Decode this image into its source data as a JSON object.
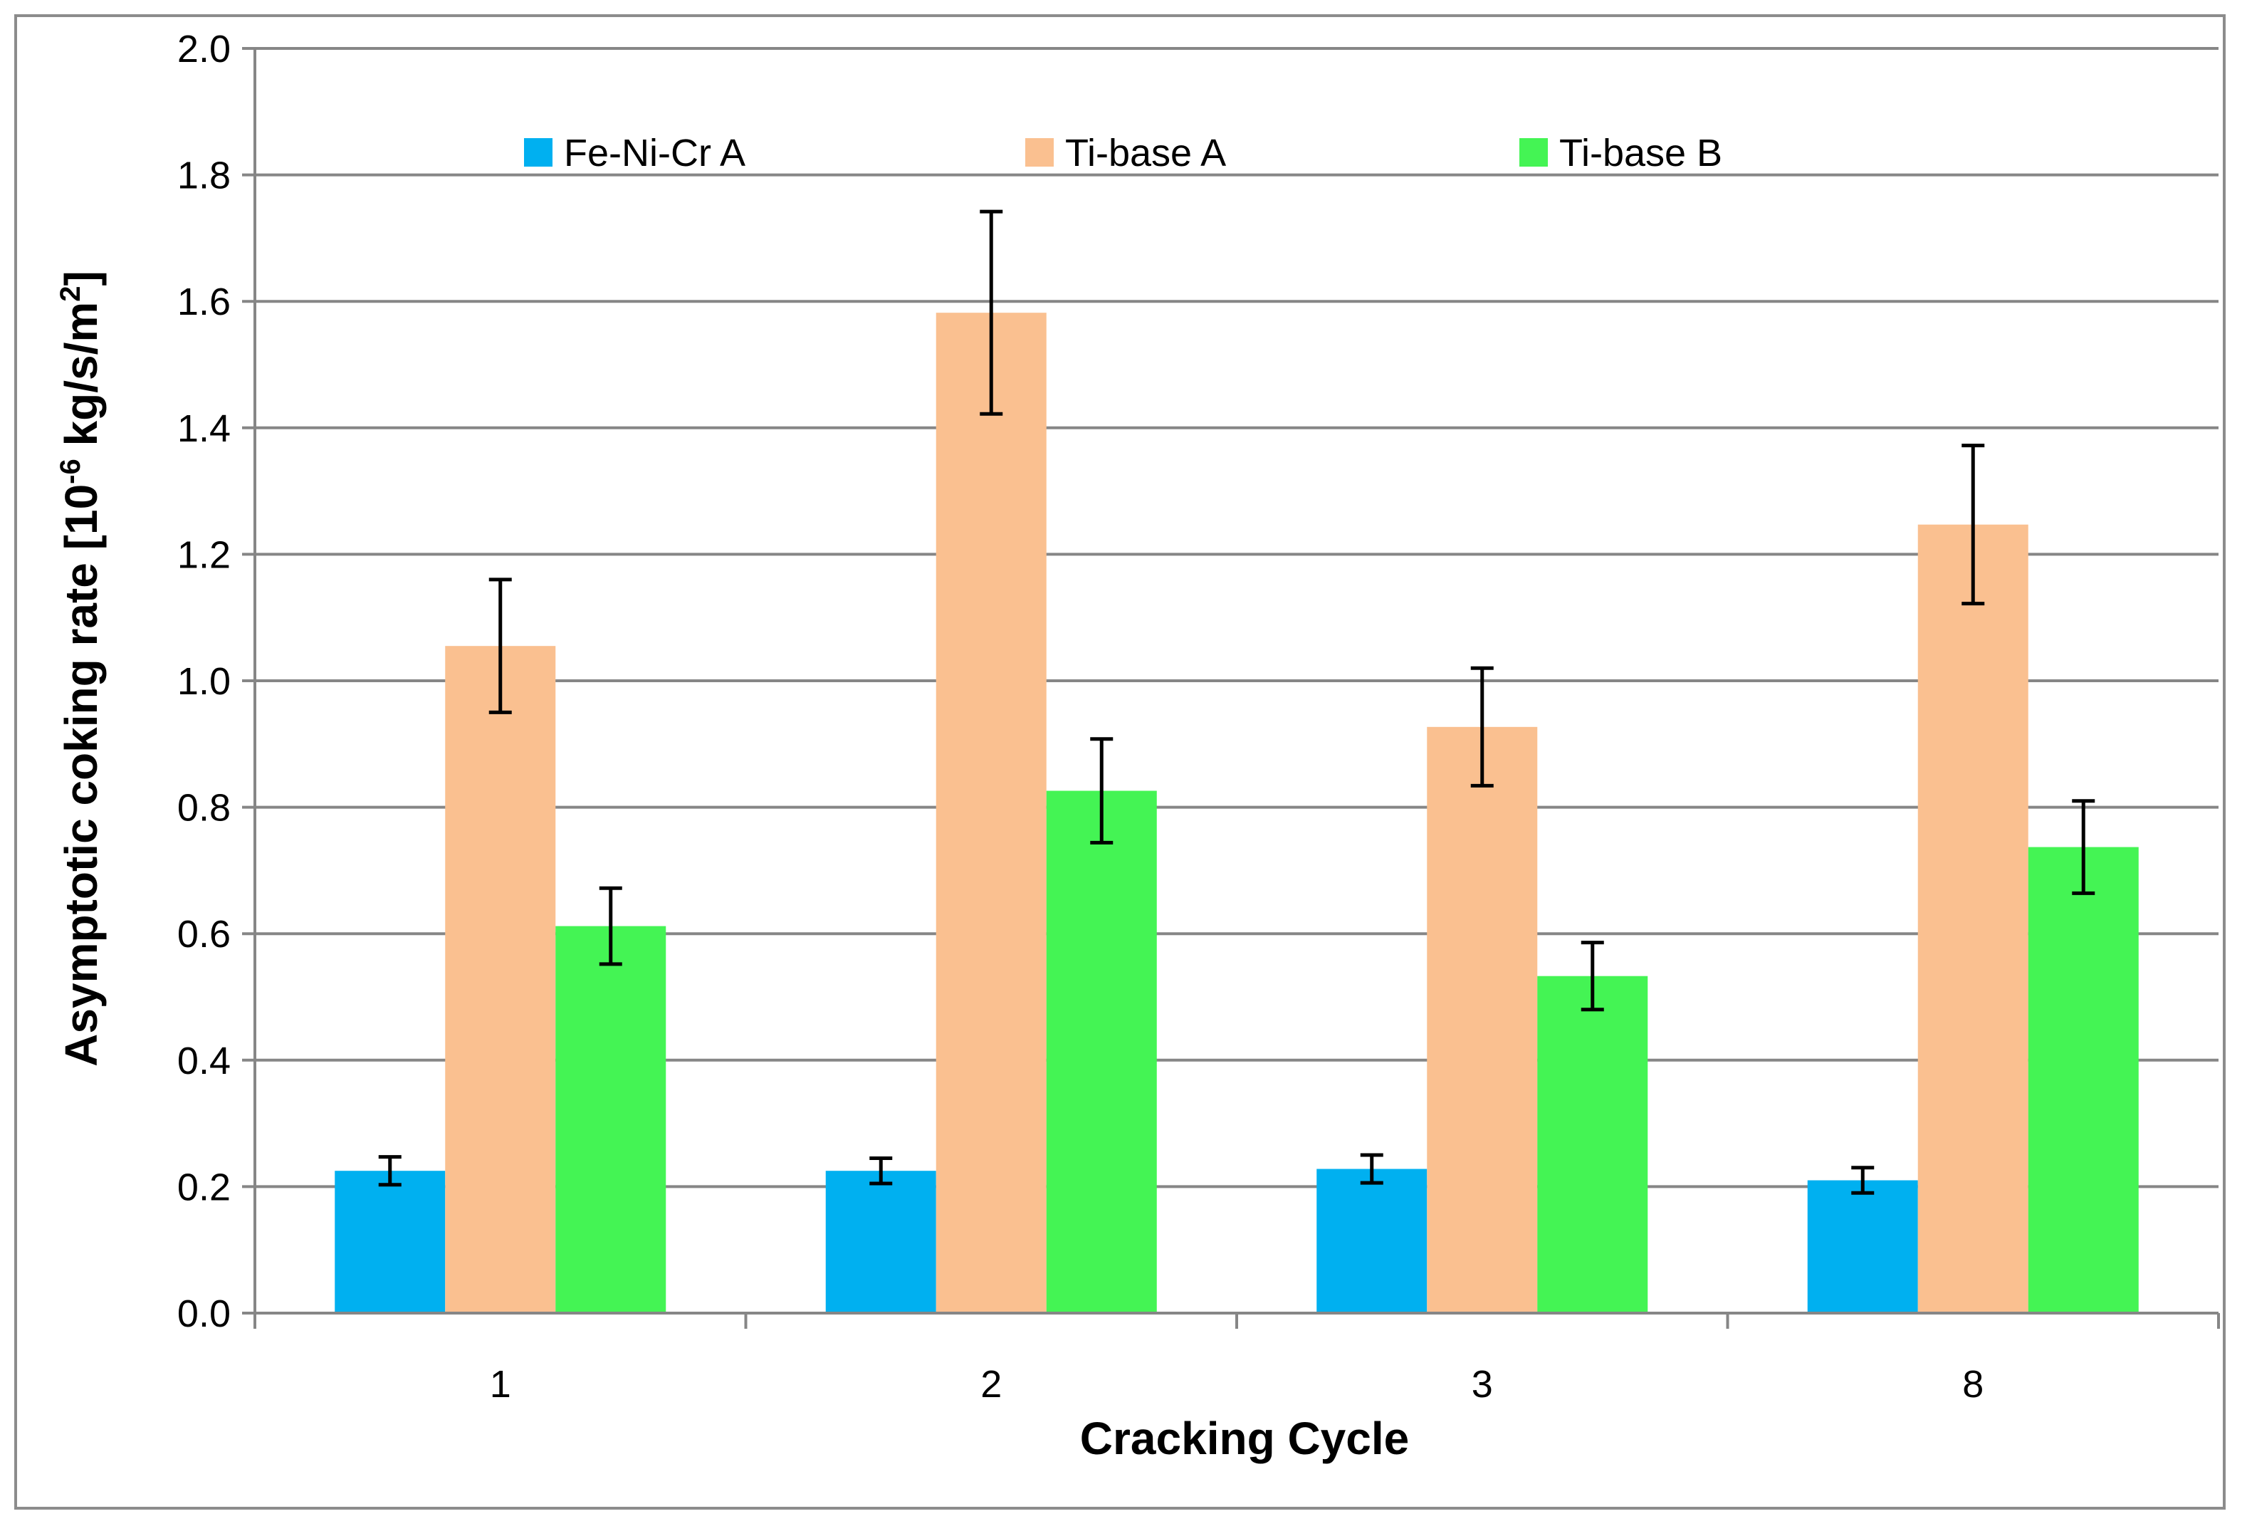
{
  "chart_data": {
    "type": "bar",
    "title": "",
    "xlabel": "Cracking Cycle",
    "ylabel": {
      "prefix": "Asymptotic coking rate [10",
      "exponent": "-6",
      "middle": " kg/s/m",
      "unit_exponent": "2",
      "suffix": "]"
    },
    "categories": [
      "1",
      "2",
      "3",
      "8"
    ],
    "ylim": [
      0,
      2.0
    ],
    "yticks": [
      "0.0",
      "0.2",
      "0.4",
      "0.6",
      "0.8",
      "1.0",
      "1.2",
      "1.4",
      "1.6",
      "1.8",
      "2.0"
    ],
    "grid": true,
    "legend_position": "top",
    "series": [
      {
        "name": "Fe-Ni-Cr A",
        "color": "#00b0f0",
        "values": [
          0.225,
          0.225,
          0.228,
          0.21
        ],
        "errors": [
          0.022,
          0.02,
          0.022,
          0.02
        ]
      },
      {
        "name": "Ti-base A",
        "color": "#fac090",
        "values": [
          1.055,
          1.582,
          0.927,
          1.247
        ],
        "errors": [
          0.105,
          0.16,
          0.093,
          0.125
        ]
      },
      {
        "name": "Ti-base B",
        "color": "#44f454",
        "values": [
          0.612,
          0.826,
          0.533,
          0.737
        ],
        "errors": [
          0.06,
          0.082,
          0.053,
          0.073
        ]
      }
    ]
  }
}
